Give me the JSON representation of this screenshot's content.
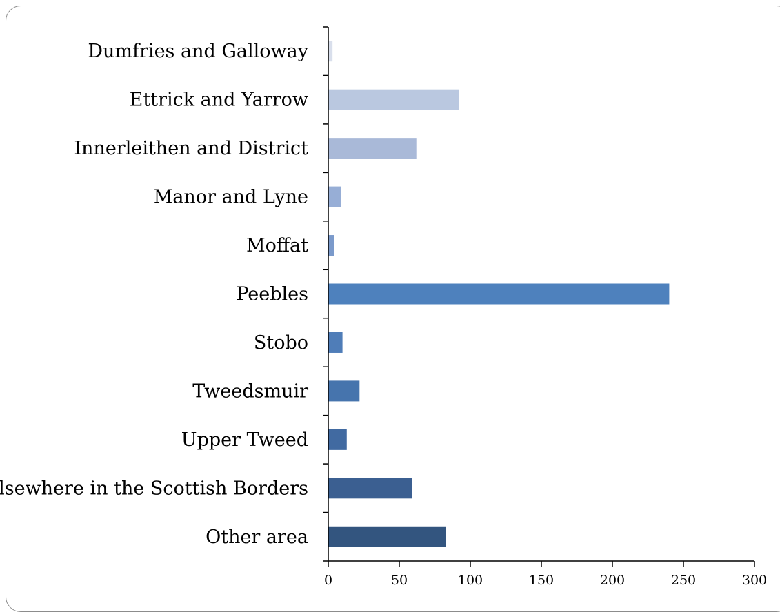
{
  "chart_data": {
    "type": "bar",
    "orientation": "horizontal",
    "categories": [
      "Dumfries and Galloway",
      "Ettrick and Yarrow",
      "Innerleithen and District",
      "Manor and Lyne",
      "Moffat",
      "Peebles",
      "Stobo",
      "Tweedsmuir",
      "Upper Tweed",
      "Elsewhere in the Scottish Borders",
      "Other area"
    ],
    "values": [
      3,
      92,
      62,
      9,
      4,
      240,
      10,
      22,
      13,
      59,
      83
    ],
    "colors": [
      "#d9dfec",
      "#bac8e0",
      "#a9b9d8",
      "#97aed6",
      "#7b9acb",
      "#4e81bd",
      "#4f7db8",
      "#4674ad",
      "#416aa1",
      "#3b5f91",
      "#33557f"
    ],
    "xlim": [
      0,
      300
    ],
    "xticks": [
      "0",
      "50",
      "100",
      "150",
      "200",
      "250",
      "300"
    ],
    "title": "",
    "xlabel": "",
    "ylabel": "",
    "grid": false,
    "legend": "none"
  }
}
